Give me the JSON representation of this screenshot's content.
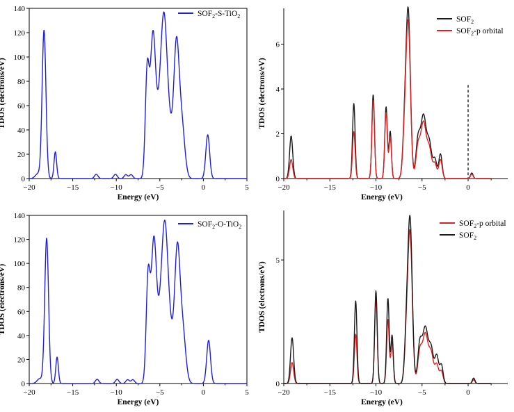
{
  "chart_data": [
    {
      "type": "line",
      "panel": "top-left",
      "xlabel": "Energy (eV)",
      "ylabel": "TDOS (electrons/eV)",
      "xlim": [
        -20,
        5
      ],
      "ylim": [
        0,
        140
      ],
      "xticks": [
        -20,
        -15,
        -10,
        -5,
        0,
        5
      ],
      "yticks": [
        0,
        20,
        40,
        60,
        80,
        100,
        120,
        140
      ],
      "xtick_labels": [
        "−20",
        "−15",
        "−10",
        "−5",
        "0",
        "5"
      ],
      "ytick_labels": [
        "0",
        "20",
        "40",
        "60",
        "80",
        "100",
        "120",
        "140"
      ],
      "legend_position": "top-right",
      "series": [
        {
          "name": "SOF2-S-TiO2",
          "legend": {
            "base": "SOF",
            "sub1": "2",
            "mid": "-S-TiO",
            "sub2": "2"
          },
          "color": "#1f1fd6",
          "peaks": [
            [
              -19.0,
              4,
              0.3
            ],
            [
              -18.3,
              122,
              0.22
            ],
            [
              -17.0,
              22,
              0.15
            ],
            [
              -12.3,
              3.5,
              0.2
            ],
            [
              -10.1,
              3.5,
              0.2
            ],
            [
              -8.9,
              3.2,
              0.2
            ],
            [
              -8.3,
              3.2,
              0.2
            ],
            [
              -6.45,
              86,
              0.22
            ],
            [
              -5.8,
              112,
              0.3
            ],
            [
              -5.0,
              52,
              0.42
            ],
            [
              -4.5,
              100,
              0.34
            ],
            [
              -3.9,
              38,
              0.38
            ],
            [
              -3.1,
              102,
              0.3
            ],
            [
              -2.5,
              45,
              0.35
            ],
            [
              0.5,
              36,
              0.22
            ]
          ]
        }
      ]
    },
    {
      "type": "line",
      "panel": "top-right",
      "xlabel": "Energy (eV)",
      "ylabel": "TDOS (electrons/eV)",
      "xlim": [
        -20,
        4.3
      ],
      "ylim": [
        0,
        7.6
      ],
      "xticks": [
        -20,
        -15,
        -10,
        -5,
        0
      ],
      "yticks": [
        0,
        2,
        4,
        6
      ],
      "xtick_labels": [
        "−20",
        "−15",
        "−10",
        "−5",
        "0"
      ],
      "ytick_labels": [
        "0",
        "2",
        "4",
        "6"
      ],
      "fermi_level": 0,
      "legend_position": "top-right",
      "series": [
        {
          "name": "SOF2",
          "legend": {
            "base": "SOF",
            "sub1": "2",
            "mid": "",
            "sub2": ""
          },
          "color": "#1a1a1a",
          "peaks": [
            [
              -19.2,
              1.9,
              0.17
            ],
            [
              -12.4,
              3.35,
              0.14
            ],
            [
              -10.3,
              3.75,
              0.14
            ],
            [
              -8.9,
              3.2,
              0.14
            ],
            [
              -8.45,
              2.1,
              0.13
            ],
            [
              -6.5,
              7.4,
              0.24
            ],
            [
              -6.9,
              1.8,
              0.2
            ],
            [
              -5.45,
              1.6,
              0.22
            ],
            [
              -4.85,
              2.8,
              0.3
            ],
            [
              -4.2,
              1.5,
              0.25
            ],
            [
              -3.6,
              0.85,
              0.2
            ],
            [
              -3.0,
              1.1,
              0.18
            ],
            [
              0.4,
              0.25,
              0.14
            ]
          ]
        },
        {
          "name": "SOF2-p orbital",
          "legend": {
            "base": "SOF",
            "sub1": "2",
            "mid": "-p orbital",
            "sub2": ""
          },
          "color": "#e02020",
          "peaks": [
            [
              -19.2,
              0.85,
              0.17
            ],
            [
              -12.4,
              2.1,
              0.14
            ],
            [
              -10.3,
              3.5,
              0.14
            ],
            [
              -8.9,
              2.95,
              0.14
            ],
            [
              -8.45,
              1.85,
              0.13
            ],
            [
              -6.5,
              6.85,
              0.24
            ],
            [
              -6.9,
              1.6,
              0.2
            ],
            [
              -5.45,
              1.3,
              0.22
            ],
            [
              -4.85,
              2.5,
              0.3
            ],
            [
              -4.2,
              1.25,
              0.25
            ],
            [
              -3.6,
              0.65,
              0.2
            ],
            [
              -3.0,
              0.85,
              0.18
            ],
            [
              0.4,
              0.2,
              0.14
            ]
          ]
        }
      ]
    },
    {
      "type": "line",
      "panel": "bottom-left",
      "xlabel": "Energy (eV)",
      "ylabel": "TDOS (electrons/eV)",
      "xlim": [
        -20,
        5
      ],
      "ylim": [
        0,
        140
      ],
      "xticks": [
        -20,
        -15,
        -10,
        -5,
        0,
        5
      ],
      "yticks": [
        0,
        20,
        40,
        60,
        80,
        100,
        120,
        140
      ],
      "xtick_labels": [
        "−20",
        "−15",
        "−10",
        "−5",
        "0",
        "5"
      ],
      "ytick_labels": [
        "0",
        "20",
        "40",
        "60",
        "80",
        "100",
        "120",
        "140"
      ],
      "legend_position": "top-right",
      "series": [
        {
          "name": "SOF2-O-TiO2",
          "legend": {
            "base": "SOF",
            "sub1": "2",
            "mid": "-O-TiO",
            "sub2": "2"
          },
          "color": "#1f1fd6",
          "peaks": [
            [
              -18.8,
              4,
              0.3
            ],
            [
              -18.0,
              121,
              0.22
            ],
            [
              -16.8,
              22,
              0.15
            ],
            [
              -12.2,
              3.5,
              0.2
            ],
            [
              -9.9,
              3.5,
              0.2
            ],
            [
              -8.7,
              3.2,
              0.2
            ],
            [
              -8.1,
              3.2,
              0.2
            ],
            [
              -6.35,
              86,
              0.22
            ],
            [
              -5.7,
              113,
              0.3
            ],
            [
              -4.9,
              52,
              0.42
            ],
            [
              -4.4,
              99,
              0.34
            ],
            [
              -3.8,
              38,
              0.38
            ],
            [
              -3.0,
              103,
              0.3
            ],
            [
              -2.4,
              45,
              0.35
            ],
            [
              0.6,
              36,
              0.22
            ]
          ]
        }
      ]
    },
    {
      "type": "line",
      "panel": "bottom-right",
      "xlabel": "Energy (eV)",
      "ylabel": "TDOS (electrons/eV)",
      "xlim": [
        -20,
        4.3
      ],
      "ylim": [
        0,
        7.0
      ],
      "xticks": [
        -20,
        -15,
        -10,
        -5,
        0
      ],
      "yticks": [
        0,
        5
      ],
      "xtick_labels": [
        "−20",
        "−15",
        "−10",
        "−5",
        "0"
      ],
      "ytick_labels": [
        "0",
        "5"
      ],
      "legend_position": "top-right",
      "series": [
        {
          "name": "SOF2-p orbital",
          "legend": {
            "base": "SOF",
            "sub1": "2",
            "mid": "-p orbital",
            "sub2": ""
          },
          "color": "#e02020",
          "peaks": [
            [
              -19.1,
              0.85,
              0.17
            ],
            [
              -12.2,
              2.0,
              0.14
            ],
            [
              -10.0,
              3.45,
              0.14
            ],
            [
              -8.7,
              2.6,
              0.14
            ],
            [
              -8.25,
              1.7,
              0.13
            ],
            [
              -6.3,
              6.0,
              0.24
            ],
            [
              -6.7,
              1.5,
              0.2
            ],
            [
              -5.25,
              1.2,
              0.22
            ],
            [
              -4.65,
              2.0,
              0.3
            ],
            [
              -4.0,
              1.15,
              0.25
            ],
            [
              -3.4,
              0.75,
              0.2
            ],
            [
              -2.9,
              0.5,
              0.18
            ],
            [
              0.6,
              0.15,
              0.14
            ]
          ]
        },
        {
          "name": "SOF2",
          "legend": {
            "base": "SOF",
            "sub1": "2",
            "mid": "",
            "sub2": ""
          },
          "color": "#1a1a1a",
          "peaks": [
            [
              -19.1,
              1.85,
              0.17
            ],
            [
              -12.2,
              3.35,
              0.14
            ],
            [
              -10.0,
              3.75,
              0.14
            ],
            [
              -8.7,
              3.45,
              0.14
            ],
            [
              -8.25,
              1.95,
              0.13
            ],
            [
              -6.3,
              6.55,
              0.24
            ],
            [
              -6.7,
              1.7,
              0.2
            ],
            [
              -5.25,
              1.5,
              0.22
            ],
            [
              -4.65,
              2.25,
              0.3
            ],
            [
              -4.0,
              1.35,
              0.25
            ],
            [
              -3.4,
              1.1,
              0.2
            ],
            [
              -2.9,
              0.75,
              0.18
            ],
            [
              0.6,
              0.22,
              0.14
            ]
          ]
        }
      ]
    }
  ]
}
